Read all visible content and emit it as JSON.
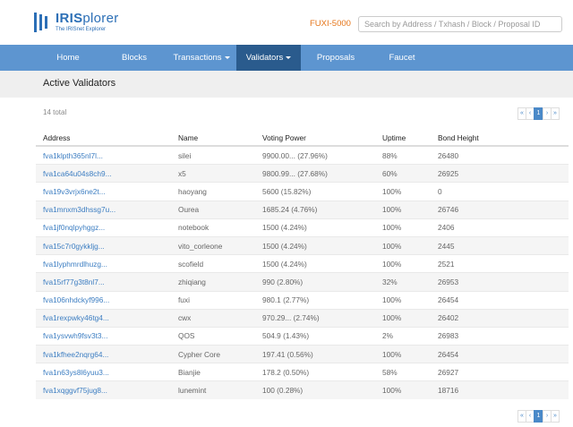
{
  "brand": {
    "title_bold": "IRIS",
    "title_light": "plorer",
    "subtitle": "The IRISnet Explorer"
  },
  "network": "FUXI-5000",
  "search": {
    "placeholder": "Search by Address / Txhash / Block / Proposal ID"
  },
  "nav": {
    "home": "Home",
    "blocks": "Blocks",
    "transactions": "Transactions",
    "validators": "Validators",
    "proposals": "Proposals",
    "faucet": "Faucet"
  },
  "page": {
    "title": "Active Validators",
    "total": "14 total"
  },
  "pagination": {
    "first": "«",
    "prev": "‹",
    "current": "1",
    "next": "›",
    "last": "»"
  },
  "table": {
    "headers": {
      "address": "Address",
      "name": "Name",
      "voting_power": "Voting Power",
      "uptime": "Uptime",
      "bond_height": "Bond Height"
    },
    "rows": [
      {
        "address": "fva1klpth365nl7l...",
        "name": "silei",
        "voting_power": "9900.00... (27.96%)",
        "uptime": "88%",
        "bond_height": "26480"
      },
      {
        "address": "fva1ca64u04s8ch9...",
        "name": "x5",
        "voting_power": "9800.99... (27.68%)",
        "uptime": "60%",
        "bond_height": "26925"
      },
      {
        "address": "fva19v3vrjx6ne2t...",
        "name": "haoyang",
        "voting_power": "5600 (15.82%)",
        "uptime": "100%",
        "bond_height": "0"
      },
      {
        "address": "fva1mnxm3dhssg7u...",
        "name": "Ourea",
        "voting_power": "1685.24 (4.76%)",
        "uptime": "100%",
        "bond_height": "26746"
      },
      {
        "address": "fva1jf0nqlpyhggz...",
        "name": "notebook",
        "voting_power": "1500 (4.24%)",
        "uptime": "100%",
        "bond_height": "2406"
      },
      {
        "address": "fva15c7r0gykkljg...",
        "name": "vito_corleone",
        "voting_power": "1500 (4.24%)",
        "uptime": "100%",
        "bond_height": "2445"
      },
      {
        "address": "fva1lyphmrdlhuzg...",
        "name": "scofield",
        "voting_power": "1500 (4.24%)",
        "uptime": "100%",
        "bond_height": "2521"
      },
      {
        "address": "fva15rf77g3t8nl7...",
        "name": "zhiqiang",
        "voting_power": "990 (2.80%)",
        "uptime": "32%",
        "bond_height": "26953"
      },
      {
        "address": "fva106nhdckyf996...",
        "name": "fuxi",
        "voting_power": "980.1 (2.77%)",
        "uptime": "100%",
        "bond_height": "26454"
      },
      {
        "address": "fva1rexpwky46tg4...",
        "name": "cwx",
        "voting_power": "970.29... (2.74%)",
        "uptime": "100%",
        "bond_height": "26402"
      },
      {
        "address": "fva1ysvwh9fsv3t3...",
        "name": "QOS",
        "voting_power": "504.9 (1.43%)",
        "uptime": "2%",
        "bond_height": "26983"
      },
      {
        "address": "fva1kfhee2nqrg64...",
        "name": "Cypher Core",
        "voting_power": "197.41 (0.56%)",
        "uptime": "100%",
        "bond_height": "26454"
      },
      {
        "address": "fva1n63ys8l6yuu3...",
        "name": "Bianjie",
        "voting_power": "178.2 (0.50%)",
        "uptime": "58%",
        "bond_height": "26927"
      },
      {
        "address": "fva1xqggvf75jug8...",
        "name": "lunemint",
        "voting_power": "100 (0.28%)",
        "uptime": "100%",
        "bond_height": "18716"
      }
    ]
  }
}
